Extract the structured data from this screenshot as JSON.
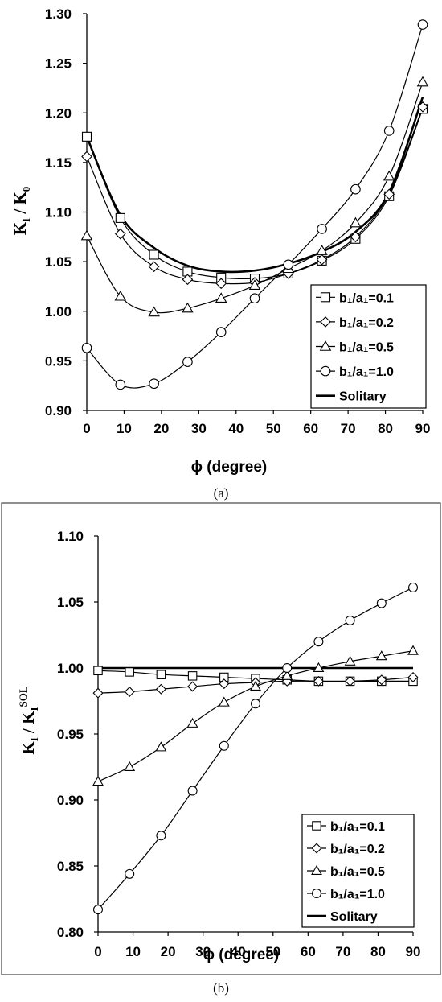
{
  "chart_data": [
    {
      "type": "line",
      "caption": "(a)",
      "xlabel": "ϕ (degree)",
      "ylabel": "KI / K0",
      "ylabel_main": "K",
      "ylabel_sub1": "I",
      "ylabel_mid": " / K",
      "ylabel_sub2": "0",
      "ylabel_sup": "",
      "xlim": [
        0,
        90
      ],
      "ylim": [
        0.9,
        1.3
      ],
      "xticks": [
        0,
        10,
        20,
        30,
        40,
        50,
        60,
        70,
        80,
        90
      ],
      "yticks": [
        0.9,
        0.95,
        1.0,
        1.05,
        1.1,
        1.15,
        1.2,
        1.25,
        1.3
      ],
      "legend_position": "bottom-right",
      "grid": false,
      "x": [
        0,
        9,
        18,
        27,
        36,
        45,
        54,
        63,
        72,
        81,
        90
      ],
      "series": [
        {
          "name": "b₁/a₁=0.1",
          "marker": "square",
          "values": [
            1.176,
            1.094,
            1.057,
            1.04,
            1.034,
            1.033,
            1.038,
            1.051,
            1.073,
            1.116,
            1.204
          ]
        },
        {
          "name": "b₁/a₁=0.2",
          "marker": "diamond",
          "values": [
            1.156,
            1.078,
            1.045,
            1.032,
            1.028,
            1.029,
            1.038,
            1.052,
            1.075,
            1.118,
            1.206
          ]
        },
        {
          "name": "b₁/a₁=0.5",
          "marker": "triangle",
          "values": [
            1.076,
            1.015,
            0.999,
            1.003,
            1.013,
            1.026,
            1.043,
            1.061,
            1.089,
            1.136,
            1.231
          ]
        },
        {
          "name": "b₁/a₁=1.0",
          "marker": "circle",
          "values": [
            0.963,
            0.926,
            0.927,
            0.949,
            0.979,
            1.013,
            1.047,
            1.083,
            1.123,
            1.182,
            1.289
          ]
        },
        {
          "name": "Solitary",
          "marker": "none",
          "values": [
            1.176,
            1.097,
            1.064,
            1.046,
            1.04,
            1.041,
            1.048,
            1.06,
            1.08,
            1.12,
            1.216
          ]
        }
      ]
    },
    {
      "type": "line",
      "caption": "(b)",
      "xlabel": "ϕ (degree)",
      "ylabel": "KI / KISOL",
      "ylabel_main": "K",
      "ylabel_sub1": "I",
      "ylabel_mid": " / K",
      "ylabel_sub2": "I",
      "ylabel_sup": "SOL",
      "xlim": [
        0,
        90
      ],
      "ylim": [
        0.8,
        1.1
      ],
      "xticks": [
        0,
        10,
        20,
        30,
        40,
        50,
        60,
        70,
        80,
        90
      ],
      "yticks": [
        0.8,
        0.85,
        0.9,
        0.95,
        1.0,
        1.05,
        1.1
      ],
      "legend_position": "bottom-right",
      "grid": false,
      "x": [
        0,
        9,
        18,
        27,
        36,
        45,
        54,
        63,
        72,
        81,
        90
      ],
      "series": [
        {
          "name": "b₁/a₁=0.1",
          "marker": "square",
          "values": [
            0.998,
            0.997,
            0.995,
            0.994,
            0.993,
            0.992,
            0.991,
            0.99,
            0.99,
            0.99,
            0.99
          ]
        },
        {
          "name": "b₁/a₁=0.2",
          "marker": "diamond",
          "values": [
            0.981,
            0.982,
            0.984,
            0.986,
            0.988,
            0.989,
            0.99,
            0.99,
            0.99,
            0.991,
            0.993
          ]
        },
        {
          "name": "b₁/a₁=0.5",
          "marker": "triangle",
          "values": [
            0.914,
            0.925,
            0.94,
            0.958,
            0.974,
            0.986,
            0.994,
            1.0,
            1.005,
            1.009,
            1.013
          ]
        },
        {
          "name": "b₁/a₁=1.0",
          "marker": "circle",
          "values": [
            0.817,
            0.844,
            0.873,
            0.907,
            0.941,
            0.973,
            1.0,
            1.02,
            1.036,
            1.049,
            1.061
          ]
        },
        {
          "name": "Solitary",
          "marker": "none",
          "values": [
            1.0,
            1.0,
            1.0,
            1.0,
            1.0,
            1.0,
            1.0,
            1.0,
            1.0,
            1.0,
            1.0
          ]
        }
      ]
    }
  ]
}
